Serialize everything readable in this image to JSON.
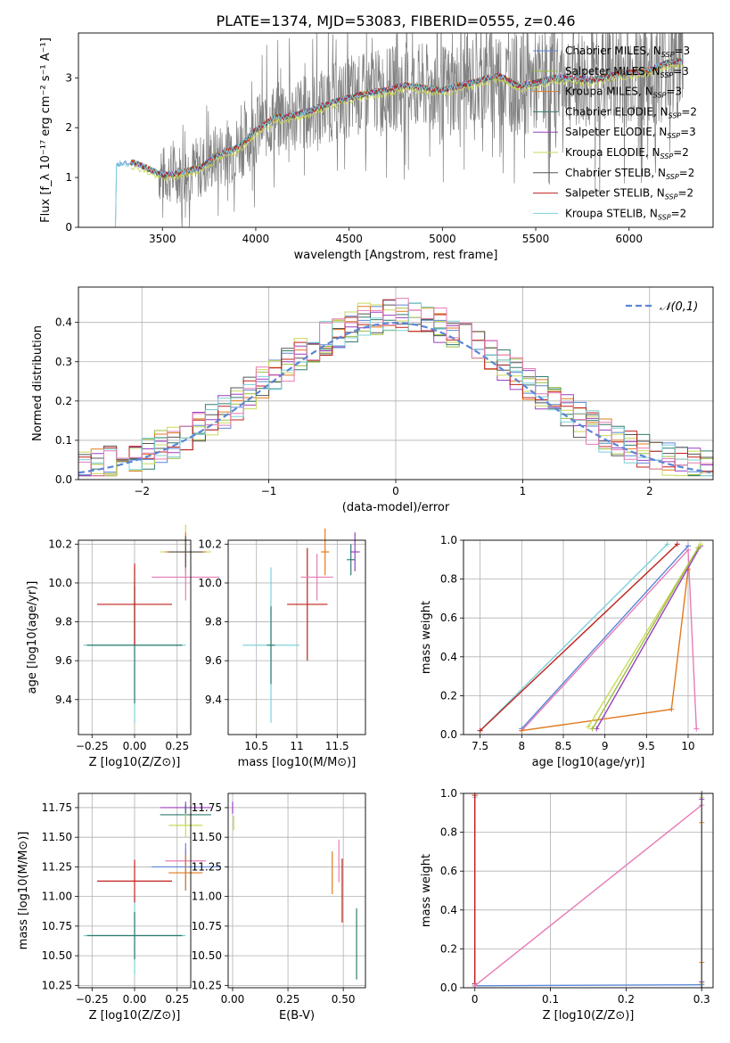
{
  "figure": {
    "title": "PLATE=1374, MJD=53083, FIBERID=0555, z=0.46"
  },
  "colors": {
    "Chabrier MILES": "#5b86d6",
    "Salpeter MILES": "#9bbd3e",
    "Kroupa MILES": "#e07a1f",
    "Chabrier ELODIE": "#2f7c6e",
    "Salpeter ELODIE": "#9a3fc0",
    "Kroupa ELODIE": "#c9d957",
    "Chabrier STELIB": "#555555",
    "Salpeter STELIB": "#c0211b",
    "Kroupa STELIB": "#7fd0da",
    "pink": "#e77cb7",
    "normal": "#5b86d6",
    "data": "#808080"
  },
  "chart_data": [
    {
      "id": "spectrum",
      "type": "line",
      "title": "PLATE=1374, MJD=53083, FIBERID=0555, z=0.46",
      "xlabel": "wavelength [Angstrom, rest frame]",
      "ylabel": "Flux [f_λ 10^-17 erg cm^-2 s^-1 A^-1]",
      "xlim": [
        3050,
        6450
      ],
      "ylim": [
        0,
        3.9
      ],
      "xticks": [
        3500,
        4000,
        4500,
        5000,
        5500,
        6000
      ],
      "yticks": [
        0,
        1,
        2,
        3
      ],
      "legend_position": "right",
      "legend": [
        {
          "label": "Chabrier MILES, N_SSP=3",
          "color": "#5b86d6"
        },
        {
          "label": "Salpeter MILES, N_SSP=3",
          "color": "#9bbd3e"
        },
        {
          "label": "Kroupa MILES, N_SSP=3",
          "color": "#e07a1f"
        },
        {
          "label": "Chabrier ELODIE, N_SSP=2",
          "color": "#2f7c6e"
        },
        {
          "label": "Salpeter ELODIE, N_SSP=3",
          "color": "#9a3fc0"
        },
        {
          "label": "Kroupa ELODIE, N_SSP=2",
          "color": "#c9d957"
        },
        {
          "label": "Chabrier STELIB, N_SSP=2",
          "color": "#555555"
        },
        {
          "label": "Salpeter STELIB, N_SSP=2",
          "color": "#c0211b"
        },
        {
          "label": "Kroupa STELIB, N_SSP=2",
          "color": "#7fd0da"
        }
      ],
      "model_trend": {
        "x": [
          3230,
          3250,
          3350,
          3500,
          3600,
          3700,
          3800,
          3900,
          3950,
          4000,
          4100,
          4200,
          4300,
          4400,
          4500,
          4600,
          4700,
          4800,
          4900,
          5000,
          5100,
          5200,
          5300,
          5400,
          5500,
          5600,
          5700,
          5800,
          5900,
          6000,
          6100,
          6200,
          6300
        ],
        "y": [
          0,
          1.25,
          1.3,
          1.05,
          1.1,
          1.2,
          1.45,
          1.6,
          1.75,
          1.95,
          2.2,
          2.25,
          2.35,
          2.5,
          2.6,
          2.7,
          2.75,
          2.85,
          2.8,
          2.75,
          2.85,
          2.95,
          3.05,
          2.85,
          2.9,
          3.0,
          3.0,
          2.95,
          3.05,
          3.1,
          3.15,
          3.3,
          3.35
        ]
      },
      "data_range": [
        3480,
        6290
      ]
    },
    {
      "id": "residuals",
      "type": "line",
      "xlabel": "(data-model)/error",
      "ylabel": "Normed distribution",
      "xlim": [
        -2.5,
        2.5
      ],
      "ylim": [
        0,
        0.49
      ],
      "xticks": [
        -2,
        -1,
        0,
        1,
        2
      ],
      "yticks": [
        0.0,
        0.1,
        0.2,
        0.3,
        0.4
      ],
      "grid": true,
      "legend_position": "top-right",
      "legend": [
        {
          "label": "𝒩(0,1)",
          "color": "#5b86d6",
          "style": "dashed"
        }
      ],
      "normal": {
        "mean": 0,
        "sigma": 1
      },
      "bin_width": 0.1
    },
    {
      "id": "age-vs-Z",
      "type": "scatter",
      "xlabel": "Z [log10(Z/Z⊙)]",
      "ylabel": "age [log10(age/yr)]",
      "xlim": [
        -0.33,
        0.33
      ],
      "ylim": [
        9.22,
        10.22
      ],
      "xticks": [
        -0.25,
        0.0,
        0.25
      ],
      "xticklabels": [
        "−0.25",
        "0.00",
        "0.25"
      ],
      "yticks": [
        9.4,
        9.6,
        9.8,
        10.0,
        10.2
      ],
      "grid": true,
      "points": [
        {
          "x": 0.0,
          "y": 9.68,
          "xerr": 0.3,
          "yerr": 0.4,
          "color": "#7fd0da"
        },
        {
          "x": 0.0,
          "y": 9.68,
          "xerr": 0.28,
          "yerr": 0.3,
          "color": "#2f7c6e"
        },
        {
          "x": 0.0,
          "y": 9.89,
          "xerr": 0.22,
          "yerr": 0.21,
          "color": "#c0211b"
        },
        {
          "x": 0.3,
          "y": 10.16,
          "xerr": 0.15,
          "yerr": 0.14,
          "color": "#c9d957"
        },
        {
          "x": 0.3,
          "y": 10.16,
          "xerr": 0.12,
          "yerr": 0.1,
          "color": "#e07a1f"
        },
        {
          "x": 0.3,
          "y": 10.03,
          "xerr": 0.2,
          "yerr": 0.12,
          "color": "#e77cb7"
        },
        {
          "x": 0.3,
          "y": 10.16,
          "xerr": 0.1,
          "yerr": 0.08,
          "color": "#555555"
        }
      ]
    },
    {
      "id": "age-vs-mass",
      "type": "scatter",
      "xlabel": "mass [log10(M/M⊙)]",
      "xlim": [
        10.15,
        11.85
      ],
      "ylim": [
        9.22,
        10.22
      ],
      "xticks": [
        10.5,
        11.0,
        11.5
      ],
      "yticks": [
        9.4,
        9.6,
        9.8,
        10.0,
        10.2
      ],
      "grid": true,
      "points": [
        {
          "x": 10.68,
          "y": 9.68,
          "xerr": 0.35,
          "yerr": 0.4,
          "color": "#7fd0da"
        },
        {
          "x": 10.68,
          "y": 9.68,
          "xerr": 0.05,
          "yerr": 0.2,
          "color": "#2f7c6e"
        },
        {
          "x": 11.13,
          "y": 9.89,
          "xerr": 0.25,
          "yerr": 0.29,
          "color": "#c0211b"
        },
        {
          "x": 11.25,
          "y": 10.03,
          "xerr": 0.2,
          "yerr": 0.12,
          "color": "#e77cb7"
        },
        {
          "x": 11.35,
          "y": 10.16,
          "xerr": 0.05,
          "yerr": 0.12,
          "color": "#e07a1f"
        },
        {
          "x": 11.72,
          "y": 10.16,
          "xerr": 0.06,
          "yerr": 0.1,
          "color": "#9a3fc0"
        },
        {
          "x": 11.67,
          "y": 10.12,
          "xerr": 0.05,
          "yerr": 0.08,
          "color": "#2f7c6e"
        }
      ]
    },
    {
      "id": "massweight-vs-age",
      "type": "line",
      "xlabel": "age [log10(age/yr)]",
      "ylabel": "mass weight",
      "xlim": [
        7.3,
        10.3
      ],
      "ylim": [
        0,
        1
      ],
      "xticks": [
        7.5,
        8.0,
        8.5,
        9.0,
        9.5,
        10.0
      ],
      "yticks": [
        0.0,
        0.2,
        0.4,
        0.6,
        0.8,
        1.0
      ],
      "grid": true,
      "series": [
        {
          "color": "#7fd0da",
          "x": [
            7.5,
            9.75
          ],
          "y": [
            0.02,
            0.98
          ]
        },
        {
          "color": "#c0211b",
          "x": [
            7.5,
            9.87
          ],
          "y": [
            0.02,
            0.98
          ]
        },
        {
          "color": "#5b86d6",
          "x": [
            8.0,
            10.0
          ],
          "y": [
            0.03,
            0.97
          ]
        },
        {
          "color": "#e77cb7",
          "x": [
            8.0,
            10.0,
            10.1
          ],
          "y": [
            0.02,
            0.95,
            0.03
          ]
        },
        {
          "color": "#e07a1f",
          "x": [
            8.0,
            9.8,
            10.0
          ],
          "y": [
            0.02,
            0.13,
            0.85
          ]
        },
        {
          "color": "#9a3fc0",
          "x": [
            8.9,
            10.15
          ],
          "y": [
            0.03,
            0.97
          ]
        },
        {
          "color": "#c9d957",
          "x": [
            8.8,
            10.15
          ],
          "y": [
            0.04,
            0.98
          ]
        },
        {
          "color": "#9bbd3e",
          "x": [
            8.85,
            10.12
          ],
          "y": [
            0.03,
            0.96
          ]
        }
      ]
    },
    {
      "id": "mass-vs-Z",
      "type": "scatter",
      "xlabel": "Z [log10(Z/Z⊙)]",
      "ylabel": "mass [log10(M/M⊙)]",
      "xlim": [
        -0.33,
        0.33
      ],
      "ylim": [
        10.23,
        11.87
      ],
      "xticks": [
        -0.25,
        0.0,
        0.25
      ],
      "xticklabels": [
        "−0.25",
        "0.00",
        "0.25"
      ],
      "yticks": [
        10.25,
        10.5,
        10.75,
        11.0,
        11.25,
        11.5,
        11.75
      ],
      "grid": true,
      "points": [
        {
          "x": 0.0,
          "y": 10.67,
          "xerr": 0.3,
          "yerr": 0.33,
          "color": "#7fd0da"
        },
        {
          "x": 0.0,
          "y": 10.67,
          "xerr": 0.28,
          "yerr": 0.2,
          "color": "#2f7c6e"
        },
        {
          "x": 0.0,
          "y": 11.13,
          "xerr": 0.22,
          "yerr": 0.18,
          "color": "#c0211b"
        },
        {
          "x": 0.3,
          "y": 11.75,
          "xerr": 0.15,
          "yerr": 0.05,
          "color": "#9a3fc0"
        },
        {
          "x": 0.3,
          "y": 11.69,
          "xerr": 0.15,
          "yerr": 0.08,
          "color": "#2f7c6e"
        },
        {
          "x": 0.3,
          "y": 11.6,
          "xerr": 0.1,
          "yerr": 0.1,
          "color": "#c9d957"
        },
        {
          "x": 0.3,
          "y": 11.3,
          "xerr": 0.12,
          "yerr": 0.1,
          "color": "#e77cb7"
        },
        {
          "x": 0.3,
          "y": 11.25,
          "xerr": 0.2,
          "yerr": 0.2,
          "color": "#5b86d6"
        },
        {
          "x": 0.3,
          "y": 11.2,
          "xerr": 0.1,
          "yerr": 0.15,
          "color": "#e07a1f"
        }
      ]
    },
    {
      "id": "mass-vs-ebv",
      "type": "scatter",
      "xlabel": "E(B-V)",
      "xlim": [
        -0.02,
        0.6
      ],
      "ylim": [
        10.23,
        11.87
      ],
      "xticks": [
        0.0,
        0.25,
        0.5
      ],
      "xticklabels": [
        "0.00",
        "0.25",
        "0.50"
      ],
      "yticks": [
        10.25,
        10.5,
        10.75,
        11.0,
        11.25,
        11.5,
        11.75
      ],
      "grid": true,
      "points": [
        {
          "x": 0.0,
          "y": 11.75,
          "xerr": 0,
          "yerr": 0.05,
          "color": "#9a3fc0"
        },
        {
          "x": 0.005,
          "y": 11.62,
          "xerr": 0,
          "yerr": 0.06,
          "color": "#c9d957"
        },
        {
          "x": 0.45,
          "y": 11.2,
          "xerr": 0,
          "yerr": 0.18,
          "color": "#e07a1f"
        },
        {
          "x": 0.48,
          "y": 11.3,
          "xerr": 0,
          "yerr": 0.18,
          "color": "#e77cb7"
        },
        {
          "x": 0.495,
          "y": 11.05,
          "xerr": 0,
          "yerr": 0.27,
          "color": "#c0211b"
        },
        {
          "x": 0.56,
          "y": 10.6,
          "xerr": 0,
          "yerr": 0.3,
          "color": "#2f7c6e"
        }
      ]
    },
    {
      "id": "massweight-vs-Z",
      "type": "line",
      "xlabel": "Z [log10(Z/Z⊙)]",
      "ylabel": "mass weight",
      "xlim": [
        -0.015,
        0.315
      ],
      "ylim": [
        0,
        1
      ],
      "xticks": [
        0.0,
        0.1,
        0.2,
        0.3
      ],
      "yticks": [
        0.0,
        0.2,
        0.4,
        0.6,
        0.8,
        1.0
      ],
      "grid": true,
      "series": [
        {
          "color": "#7fd0da",
          "x": [
            0.0,
            0.0
          ],
          "y": [
            0.02,
            0.98
          ]
        },
        {
          "color": "#c0211b",
          "x": [
            0.0,
            0.0
          ],
          "y": [
            0.02,
            0.99
          ]
        },
        {
          "color": "#5b86d6",
          "x": [
            0.0,
            0.3
          ],
          "y": [
            0.01,
            0.015
          ]
        },
        {
          "color": "#e77cb7",
          "x": [
            0.0,
            0.3
          ],
          "y": [
            0.01,
            0.94
          ]
        },
        {
          "color": "#c9d957",
          "x": [
            0.3,
            0.3
          ],
          "y": [
            0.02,
            0.98
          ]
        },
        {
          "color": "#9a3fc0",
          "x": [
            0.3,
            0.3
          ],
          "y": [
            0.03,
            0.97
          ]
        },
        {
          "color": "#e07a1f",
          "x": [
            0.3,
            0.3
          ],
          "y": [
            0.13,
            0.85
          ]
        },
        {
          "color": "#555555",
          "x": [
            0.3,
            0.3
          ],
          "y": [
            0.0,
            1.0
          ]
        }
      ]
    }
  ]
}
